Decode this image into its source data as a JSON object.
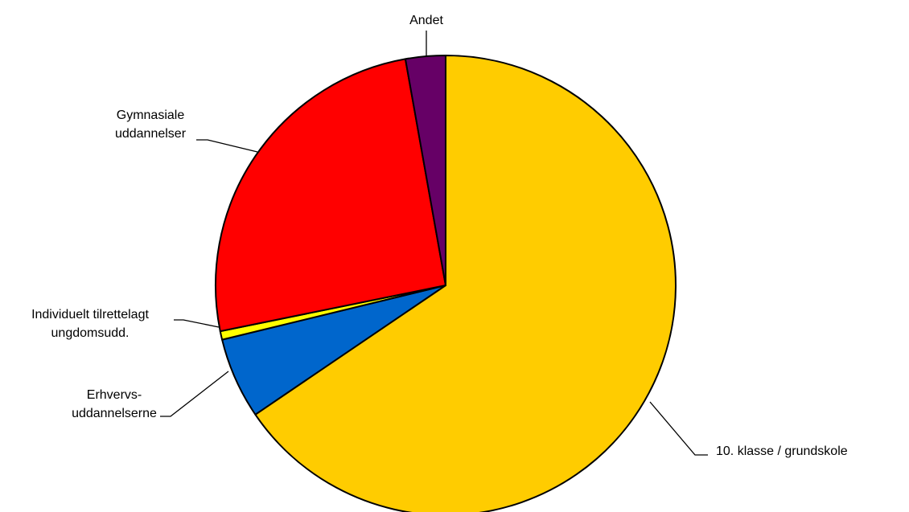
{
  "chart_data": {
    "type": "pie",
    "title": "",
    "slices": [
      {
        "label": "10. klasse / grundskole",
        "label_lines": [
          "10. klasse / grundskole"
        ],
        "value": 65.5,
        "color": "#FFCC00"
      },
      {
        "label": "Erhvervs-uddannelserne",
        "label_lines": [
          "Erhvervs-",
          "uddannelserne"
        ],
        "value": 5.7,
        "color": "#0066CC"
      },
      {
        "label": "Individuelt tilrettelagt ungdomsudd.",
        "label_lines": [
          "Individuelt tilrettelagt",
          "ungdomsudd."
        ],
        "value": 0.6,
        "color": "#FFFF00"
      },
      {
        "label": "Gymnasiale uddannelser",
        "label_lines": [
          "Gymnasiale",
          "uddannelser"
        ],
        "value": 25.4,
        "color": "#FF0000"
      },
      {
        "label": "Andet",
        "label_lines": [
          "Andet"
        ],
        "value": 2.8,
        "color": "#660066"
      }
    ],
    "start_angle_deg": 0,
    "direction": "clockwise",
    "legend": "none",
    "data_labels": "category names with leader lines"
  }
}
